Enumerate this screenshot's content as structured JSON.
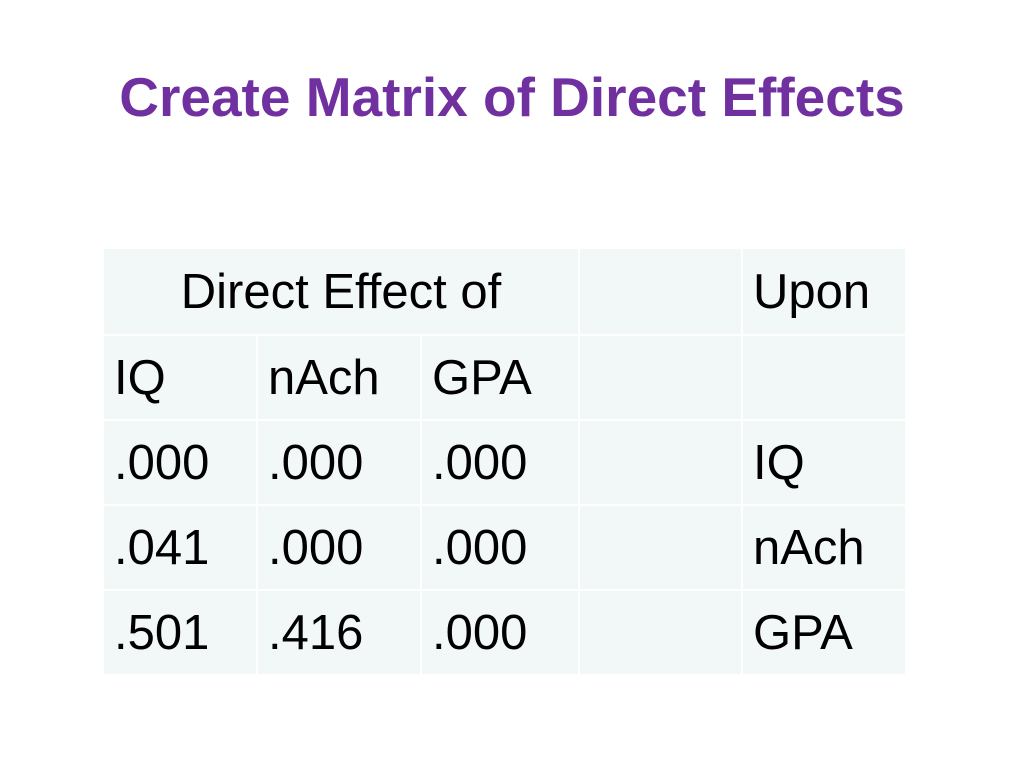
{
  "title": "Create Matrix of Direct Effects",
  "colors": {
    "title": "#7030a0",
    "cell_bg": "#f2f8f8",
    "cell_border": "#ffffff",
    "text": "#000000"
  },
  "table": {
    "header_top": {
      "span_label": "Direct Effect of",
      "blank": "",
      "upon_label": "Upon"
    },
    "header_cols": [
      "IQ",
      "nAch",
      "GPA",
      "",
      ""
    ],
    "rows": [
      [
        ".000",
        ".000",
        ".000",
        "",
        "IQ"
      ],
      [
        ".041",
        ".000",
        ".000",
        "",
        "nAch"
      ],
      [
        ".501",
        ".416",
        ".000",
        "",
        "GPA"
      ]
    ]
  }
}
